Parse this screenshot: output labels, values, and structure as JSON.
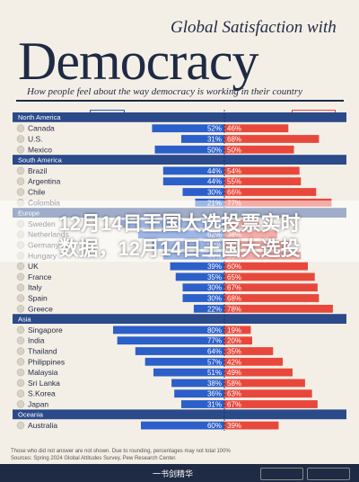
{
  "header": {
    "title_small": "Global Satisfaction with",
    "title_big": "Democracy",
    "subtitle": "How people feel about the way democracy is working in their country"
  },
  "legend": {
    "satisfied": "Satisfied",
    "dissatisfied": "Dissatisfied"
  },
  "overlay": {
    "line1": "12月14日王国大选投票实时",
    "line2": "数据，12月14日王国大选投"
  },
  "footnote": {
    "line1": "Those who did not answer are not shown. Due to rounding, percentages may not total 100%",
    "line2": "Sources: Spring 2024 Global Attitudes Survey, Pew Research Center."
  },
  "footer": {
    "watermark": "一书剑精华"
  },
  "colors": {
    "satisfied": "#2b5fc9",
    "dissatisfied": "#e8483c",
    "region": "#2b4a8a"
  },
  "chart_data": {
    "type": "bar",
    "stacked": "diverging",
    "title": "Democracy",
    "series": [
      {
        "name": "Satisfied",
        "color": "#2b5fc9"
      },
      {
        "name": "Dissatisfied",
        "color": "#e8483c"
      }
    ],
    "regions": [
      {
        "name": "North America",
        "countries": [
          {
            "name": "Canada",
            "satisfied": 52,
            "dissatisfied": 46
          },
          {
            "name": "U.S.",
            "satisfied": 31,
            "dissatisfied": 68
          },
          {
            "name": "Mexico",
            "satisfied": 50,
            "dissatisfied": 50
          }
        ]
      },
      {
        "name": "South America",
        "countries": [
          {
            "name": "Brazil",
            "satisfied": 44,
            "dissatisfied": 54
          },
          {
            "name": "Argentina",
            "satisfied": 44,
            "dissatisfied": 55
          },
          {
            "name": "Chile",
            "satisfied": 30,
            "dissatisfied": 66
          },
          {
            "name": "Colombia",
            "satisfied": 21,
            "dissatisfied": 77
          }
        ]
      },
      {
        "name": "Europe",
        "countries": [
          {
            "name": "Sweden",
            "satisfied": 75,
            "dissatisfied": 25
          },
          {
            "name": "Netherlands",
            "satisfied": 62,
            "dissatisfied": 38
          },
          {
            "name": "Germany",
            "satisfied": 52,
            "dissatisfied": 47
          },
          {
            "name": "Hungary",
            "satisfied": 44,
            "dissatisfied": 55
          },
          {
            "name": "UK",
            "satisfied": 39,
            "dissatisfied": 60
          },
          {
            "name": "France",
            "satisfied": 35,
            "dissatisfied": 65
          },
          {
            "name": "Italy",
            "satisfied": 30,
            "dissatisfied": 67
          },
          {
            "name": "Spain",
            "satisfied": 30,
            "dissatisfied": 68
          },
          {
            "name": "Greece",
            "satisfied": 22,
            "dissatisfied": 78
          }
        ]
      },
      {
        "name": "Asia",
        "countries": [
          {
            "name": "Singapore",
            "satisfied": 80,
            "dissatisfied": 19
          },
          {
            "name": "India",
            "satisfied": 77,
            "dissatisfied": 20
          },
          {
            "name": "Thailand",
            "satisfied": 64,
            "dissatisfied": 35
          },
          {
            "name": "Philippines",
            "satisfied": 57,
            "dissatisfied": 42
          },
          {
            "name": "Malaysia",
            "satisfied": 51,
            "dissatisfied": 49
          },
          {
            "name": "Sri Lanka",
            "satisfied": 38,
            "dissatisfied": 58
          },
          {
            "name": "S.Korea",
            "satisfied": 36,
            "dissatisfied": 63
          },
          {
            "name": "Japan",
            "satisfied": 31,
            "dissatisfied": 67
          }
        ]
      },
      {
        "name": "Oceania",
        "countries": [
          {
            "name": "Australia",
            "satisfied": 60,
            "dissatisfied": 39
          }
        ]
      }
    ]
  }
}
